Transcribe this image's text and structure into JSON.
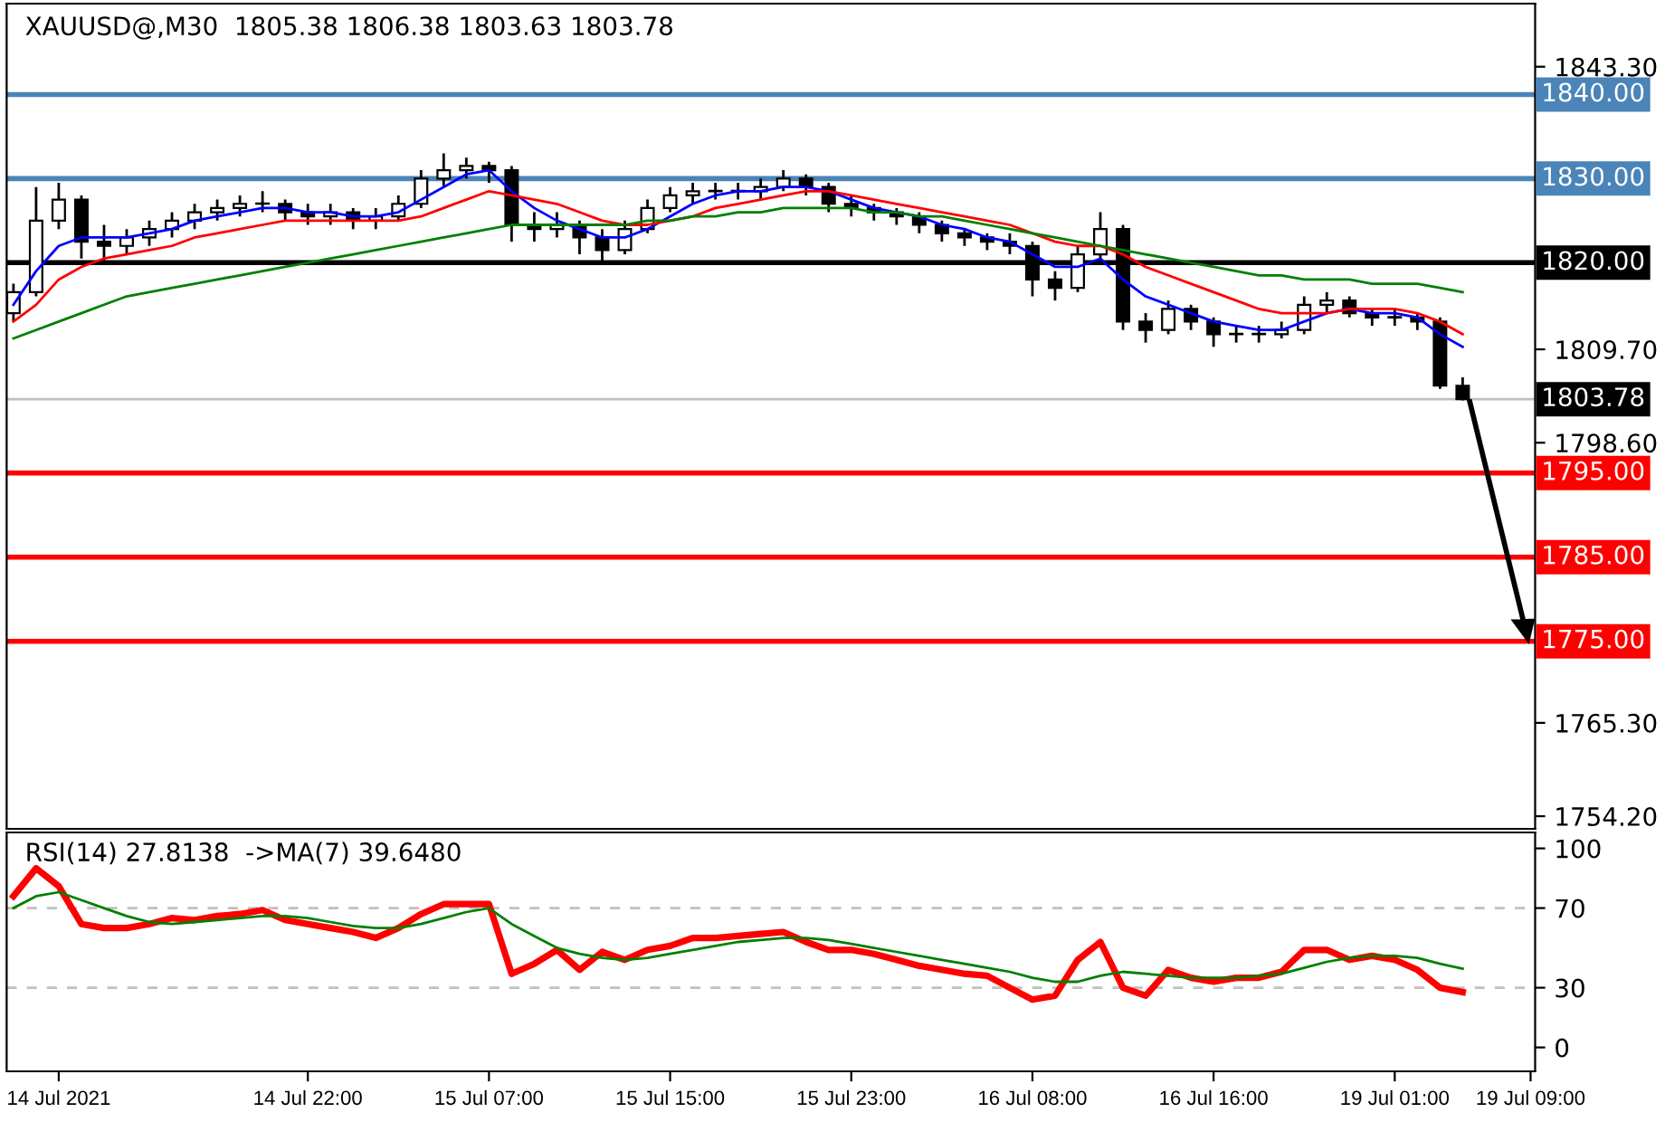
{
  "chart_data": [
    {
      "type": "candlestick",
      "title": "XAUUSD@,M30  1805.38 1806.38 1803.63 1803.78",
      "categories": [
        null,
        null,
        null,
        null,
        null,
        null,
        null,
        null,
        null,
        null,
        null,
        null,
        null,
        null,
        null,
        null,
        null,
        null,
        null,
        null,
        null,
        null,
        null,
        null,
        null,
        null,
        null,
        null,
        null,
        null,
        null,
        null,
        null,
        null,
        null,
        null,
        null,
        null,
        null,
        null,
        null,
        null,
        null,
        null,
        null,
        null,
        null,
        null,
        null,
        null,
        null,
        null,
        null,
        null,
        null,
        null,
        null,
        null,
        null,
        null,
        null,
        null,
        null,
        null,
        null
      ],
      "ohlc": [
        [
          1814.0,
          1817.5,
          1813.0,
          1816.5
        ],
        [
          1816.5,
          1829.0,
          1816.0,
          1825.0
        ],
        [
          1825.0,
          1829.5,
          1824.0,
          1827.5
        ],
        [
          1827.5,
          1828.0,
          1820.5,
          1822.5
        ],
        [
          1822.5,
          1824.5,
          1820.0,
          1822.0
        ],
        [
          1822.0,
          1824.0,
          1821.0,
          1823.0
        ],
        [
          1823.0,
          1825.0,
          1822.0,
          1824.0
        ],
        [
          1824.0,
          1826.0,
          1823.0,
          1825.0
        ],
        [
          1825.0,
          1827.0,
          1824.0,
          1826.0
        ],
        [
          1826.0,
          1827.5,
          1825.0,
          1826.5
        ],
        [
          1826.5,
          1828.0,
          1825.5,
          1827.0
        ],
        [
          1827.0,
          1828.5,
          1826.0,
          1827.0
        ],
        [
          1827.0,
          1827.5,
          1825.0,
          1826.0
        ],
        [
          1826.0,
          1827.0,
          1824.5,
          1825.5
        ],
        [
          1825.5,
          1827.0,
          1824.5,
          1826.0
        ],
        [
          1826.0,
          1826.5,
          1824.0,
          1825.0
        ],
        [
          1825.0,
          1826.5,
          1824.0,
          1825.5
        ],
        [
          1825.5,
          1828.0,
          1825.0,
          1827.0
        ],
        [
          1827.0,
          1831.0,
          1826.5,
          1830.0
        ],
        [
          1830.0,
          1833.0,
          1829.0,
          1831.0
        ],
        [
          1831.0,
          1832.5,
          1830.0,
          1831.5
        ],
        [
          1831.5,
          1832.0,
          1829.5,
          1831.0
        ],
        [
          1831.0,
          1831.5,
          1822.5,
          1824.5
        ],
        [
          1824.5,
          1826.0,
          1822.5,
          1824.0
        ],
        [
          1824.0,
          1826.0,
          1823.0,
          1824.5
        ],
        [
          1824.5,
          1825.0,
          1821.0,
          1823.0
        ],
        [
          1823.0,
          1824.0,
          1820.0,
          1821.5
        ],
        [
          1821.5,
          1825.0,
          1821.0,
          1824.0
        ],
        [
          1824.0,
          1827.5,
          1823.5,
          1826.5
        ],
        [
          1826.5,
          1829.0,
          1826.0,
          1828.0
        ],
        [
          1828.0,
          1829.5,
          1827.0,
          1828.5
        ],
        [
          1828.5,
          1829.5,
          1827.5,
          1828.5
        ],
        [
          1828.5,
          1829.5,
          1827.5,
          1828.5
        ],
        [
          1828.5,
          1830.0,
          1827.5,
          1829.0
        ],
        [
          1829.0,
          1831.0,
          1828.5,
          1830.0
        ],
        [
          1830.0,
          1830.5,
          1828.0,
          1829.0
        ],
        [
          1829.0,
          1829.5,
          1826.0,
          1827.0
        ],
        [
          1827.0,
          1828.0,
          1825.5,
          1826.5
        ],
        [
          1826.5,
          1827.0,
          1825.0,
          1826.0
        ],
        [
          1826.0,
          1826.5,
          1824.5,
          1825.5
        ],
        [
          1825.5,
          1826.0,
          1823.5,
          1824.5
        ],
        [
          1824.5,
          1825.0,
          1822.5,
          1823.5
        ],
        [
          1823.5,
          1824.0,
          1822.0,
          1823.0
        ],
        [
          1823.0,
          1823.5,
          1821.5,
          1822.5
        ],
        [
          1822.5,
          1823.5,
          1821.0,
          1822.0
        ],
        [
          1822.0,
          1822.5,
          1816.0,
          1818.0
        ],
        [
          1818.0,
          1819.0,
          1815.5,
          1817.0
        ],
        [
          1817.0,
          1822.0,
          1816.5,
          1821.0
        ],
        [
          1821.0,
          1826.0,
          1820.0,
          1824.0
        ],
        [
          1824.0,
          1824.5,
          1812.0,
          1813.0
        ],
        [
          1813.0,
          1814.0,
          1810.5,
          1812.0
        ],
        [
          1812.0,
          1815.5,
          1811.5,
          1814.5
        ],
        [
          1814.5,
          1815.0,
          1812.0,
          1813.0
        ],
        [
          1813.0,
          1813.5,
          1810.0,
          1811.5
        ],
        [
          1811.5,
          1812.5,
          1810.5,
          1811.5
        ],
        [
          1811.5,
          1812.5,
          1810.5,
          1811.5
        ],
        [
          1811.5,
          1813.0,
          1811.0,
          1812.0
        ],
        [
          1812.0,
          1816.0,
          1811.5,
          1815.0
        ],
        [
          1815.0,
          1816.5,
          1814.0,
          1815.5
        ],
        [
          1815.5,
          1816.0,
          1813.5,
          1814.0
        ],
        [
          1814.0,
          1814.5,
          1812.5,
          1813.5
        ],
        [
          1813.5,
          1814.5,
          1812.5,
          1813.5
        ],
        [
          1813.5,
          1814.0,
          1812.0,
          1813.0
        ],
        [
          1813.0,
          1813.5,
          1805.0,
          1805.4
        ],
        [
          1805.38,
          1806.38,
          1803.63,
          1803.78
        ]
      ],
      "series": [
        {
          "type": "line",
          "color": "#0000ff",
          "values": [
            1815,
            1819,
            1822,
            1823,
            1823,
            1823,
            1823.5,
            1824,
            1825,
            1825.5,
            1826,
            1826.5,
            1826.5,
            1826,
            1826,
            1825.5,
            1825.5,
            1826,
            1827.5,
            1829,
            1830.5,
            1831,
            1828.5,
            1826.5,
            1825,
            1824,
            1823,
            1823,
            1824,
            1825.5,
            1827,
            1828,
            1828.5,
            1828.5,
            1829,
            1829,
            1828.5,
            1827.5,
            1826.5,
            1826,
            1825.5,
            1824.5,
            1824,
            1823,
            1822.5,
            1821,
            1819.5,
            1819.5,
            1820.5,
            1818,
            1816,
            1815,
            1814,
            1813,
            1812.5,
            1812,
            1812,
            1813,
            1814,
            1814.5,
            1814,
            1814,
            1813.5,
            1811.5,
            1810
          ]
        },
        {
          "type": "line",
          "color": "#ff0000",
          "values": [
            1813,
            1815,
            1818,
            1819.5,
            1820.5,
            1821,
            1821.5,
            1822,
            1823,
            1823.5,
            1824,
            1824.5,
            1825,
            1825,
            1825,
            1825,
            1825,
            1825,
            1825.5,
            1826.5,
            1827.5,
            1828.5,
            1828,
            1827.5,
            1827,
            1826,
            1825,
            1824.5,
            1824.5,
            1825,
            1825.5,
            1826.5,
            1827,
            1827.5,
            1828,
            1828.5,
            1828.5,
            1828,
            1827.5,
            1827,
            1826.5,
            1826,
            1825.5,
            1825,
            1824.5,
            1823.5,
            1822.5,
            1822,
            1822,
            1821,
            1819.5,
            1818.5,
            1817.5,
            1816.5,
            1815.5,
            1814.5,
            1814,
            1814,
            1814,
            1814.5,
            1814.5,
            1814.5,
            1814,
            1813,
            1811.5
          ]
        },
        {
          "type": "line",
          "color": "#008000",
          "values": [
            1811,
            1812,
            1813,
            1814,
            1815,
            1816,
            1816.5,
            1817,
            1817.5,
            1818,
            1818.5,
            1819,
            1819.5,
            1820,
            1820.5,
            1821,
            1821.5,
            1822,
            1822.5,
            1823,
            1823.5,
            1824,
            1824.5,
            1824.5,
            1824.5,
            1824.5,
            1824.5,
            1824.5,
            1825,
            1825,
            1825.5,
            1825.5,
            1826,
            1826,
            1826.5,
            1826.5,
            1826.5,
            1826.5,
            1826,
            1826,
            1825.5,
            1825.5,
            1825,
            1824.5,
            1824,
            1823.5,
            1823,
            1822.5,
            1822,
            1821.5,
            1821,
            1820.5,
            1820,
            1819.5,
            1819,
            1818.5,
            1818.5,
            1818,
            1818,
            1818,
            1817.5,
            1817.5,
            1817.5,
            1817,
            1816.5
          ]
        }
      ],
      "ref_lines": [
        {
          "axis": "y",
          "value": 1840,
          "label": "1840.00",
          "color": "#4a84b8",
          "line_style": "solid"
        },
        {
          "axis": "y",
          "value": 1830,
          "label": "1830.00",
          "color": "#4a84b8",
          "line_style": "solid"
        },
        {
          "axis": "y",
          "value": 1820,
          "label": "1820.00",
          "color": "#000000",
          "line_style": "solid"
        },
        {
          "axis": "y",
          "value": 1803.78,
          "label": "1803.78",
          "color": "#c0c0c0",
          "line_style": "solid"
        },
        {
          "axis": "y",
          "value": 1795,
          "label": "1795.00",
          "color": "#ff0000",
          "line_style": "solid"
        },
        {
          "axis": "y",
          "value": 1785,
          "label": "1785.00",
          "color": "#ff0000",
          "line_style": "solid"
        },
        {
          "axis": "y",
          "value": 1775,
          "label": "1775.00",
          "color": "#ff0000",
          "line_style": "solid"
        }
      ],
      "ylim": [
        1752.7,
        1850.8
      ],
      "yticks": [
        {
          "value": 1754.2,
          "label": "1754.20"
        },
        {
          "value": 1765.3,
          "label": "1765.30"
        },
        {
          "value": 1798.6,
          "label": "1798.60"
        },
        {
          "value": 1809.7,
          "label": "1809.70"
        },
        {
          "value": 1843.3,
          "label": "1843.30"
        }
      ],
      "tick_labels": "y"
    },
    {
      "type": "line",
      "title": "RSI(14) 27.8138  ->MA(7) 39.6480",
      "categories": [
        null,
        null,
        "14 Jul 2021",
        null,
        null,
        null,
        null,
        null,
        null,
        null,
        null,
        null,
        null,
        "14 Jul 22:00",
        null,
        null,
        null,
        null,
        null,
        null,
        null,
        "15 Jul 07:00",
        null,
        null,
        null,
        null,
        null,
        null,
        null,
        "15 Jul 15:00",
        null,
        null,
        null,
        null,
        null,
        null,
        null,
        "15 Jul 23:00",
        null,
        null,
        null,
        null,
        null,
        null,
        null,
        "16 Jul 08:00",
        null,
        null,
        null,
        null,
        null,
        null,
        null,
        "16 Jul 16:00",
        null,
        null,
        null,
        null,
        null,
        null,
        null,
        "19 Jul 01:00",
        null,
        null,
        null,
        null,
        null,
        "19 Jul 09:00"
      ],
      "series": [
        {
          "color": "#ff0000",
          "values": [
            76,
            90,
            81,
            62,
            60,
            60,
            62,
            65,
            64,
            66,
            67,
            69,
            64,
            62,
            60,
            58,
            55,
            60,
            67,
            72,
            72,
            72,
            37,
            42,
            49,
            39,
            48,
            44,
            49,
            51,
            55,
            55,
            56,
            57,
            58,
            53,
            49,
            49,
            47,
            44,
            41,
            39,
            37,
            36,
            30,
            24,
            26,
            44,
            53,
            30,
            26,
            39,
            35,
            33,
            35,
            35,
            38,
            49,
            49,
            44,
            46,
            44,
            39,
            30,
            27.8,
            null,
            null,
            null
          ]
        },
        {
          "color": "#008000",
          "values": [
            70,
            76,
            78,
            74,
            70,
            66,
            63,
            62,
            63,
            64,
            65,
            66,
            66,
            65,
            63,
            61,
            60,
            60,
            62,
            65,
            68,
            70,
            62,
            56,
            50,
            47,
            45,
            44,
            45,
            47,
            49,
            51,
            53,
            54,
            55,
            55,
            54,
            52,
            50,
            48,
            46,
            44,
            42,
            40,
            38,
            35,
            33,
            33,
            36,
            38,
            37,
            36,
            35,
            35,
            35,
            36,
            37,
            40,
            43,
            45,
            46,
            46,
            45,
            42,
            39.6,
            null,
            null,
            null
          ]
        }
      ],
      "ref_lines": [
        {
          "axis": "y",
          "value": 30,
          "color": "#c0c0c0",
          "line_style": "dashed"
        },
        {
          "axis": "y",
          "value": 70,
          "color": "#c0c0c0",
          "line_style": "dashed"
        }
      ],
      "ylim": [
        -12,
        108
      ],
      "yticks": [
        0,
        30,
        70,
        100
      ]
    }
  ]
}
